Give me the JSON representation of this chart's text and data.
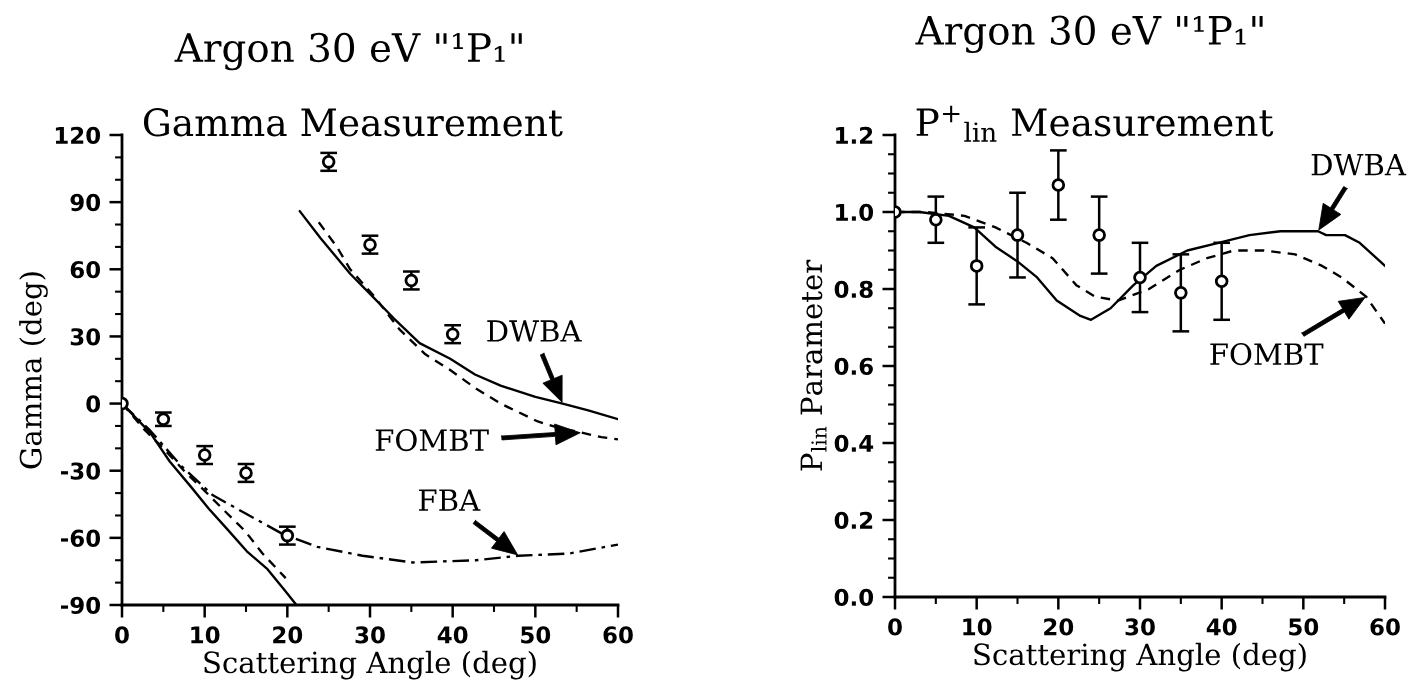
{
  "chart_data": [
    {
      "type": "line",
      "title": "Argon 30 eV \"¹P₁\"",
      "subtitle": "Gamma Measurement",
      "xlabel": "Scattering Angle (deg)",
      "ylabel": "Gamma (deg)",
      "xlim": [
        0,
        60
      ],
      "xticks": [
        0,
        {
          "value": 5,
          "label": null
        },
        10,
        {
          "value": 15,
          "label": null
        },
        20,
        {
          "value": 25,
          "label": null
        },
        30,
        {
          "value": 35,
          "label": null
        },
        40,
        {
          "value": 45,
          "label": null
        },
        50,
        {
          "value": 55,
          "label": null
        },
        60
      ],
      "ylim": [
        -90,
        120
      ],
      "yticks": [
        -90,
        {
          "value": -80,
          "label": null
        },
        {
          "value": -70,
          "label": null
        },
        -60,
        {
          "value": -50,
          "label": null
        },
        {
          "value": -40,
          "label": null
        },
        -30,
        {
          "value": -20,
          "label": null
        },
        {
          "value": -10,
          "label": null
        },
        0,
        {
          "value": 10,
          "label": null
        },
        {
          "value": 20,
          "label": null
        },
        30,
        {
          "value": 40,
          "label": null
        },
        {
          "value": 50,
          "label": null
        },
        60,
        {
          "value": 70,
          "label": null
        },
        {
          "value": 80,
          "label": null
        },
        90,
        {
          "value": 100,
          "label": null
        },
        {
          "value": 110,
          "label": null
        },
        120
      ],
      "series": [
        {
          "type": "scatter",
          "color": "#000000",
          "marker": "circle",
          "x": [
            0,
            5,
            10,
            15,
            20,
            25,
            30,
            35,
            40
          ],
          "values": [
            0,
            -7,
            -23,
            -31,
            -59,
            108,
            71,
            55,
            31
          ],
          "errors": [
            null,
            3,
            4,
            4,
            4,
            4,
            4,
            4,
            4
          ]
        },
        {
          "name": "DWBA",
          "color": "#000000",
          "line_style": "solid",
          "marker": "none",
          "x": [
            0,
            3.4,
            5.8,
            8.3,
            10.5,
            12.7,
            15.1,
            17.6,
            19.8,
            21.1,
            21.3,
            21.5,
            24,
            27.6,
            30,
            32.9,
            36,
            39.7,
            42.7,
            45.8,
            50,
            53.3,
            56.4,
            60
          ],
          "values": [
            0,
            -13,
            -26,
            -37,
            -47,
            -56,
            -66,
            -74,
            -84,
            -90,
            null,
            86,
            74,
            58,
            49,
            38,
            27,
            20,
            13,
            8,
            3,
            0,
            -3,
            -7
          ]
        },
        {
          "name": "FOMBT",
          "color": "#000000",
          "line_style": "dashed",
          "marker": "none",
          "x": [
            0,
            2.8,
            5,
            7.5,
            10,
            12.7,
            14.9,
            17,
            19.8,
            22,
            23.8,
            26,
            27.6,
            30.5,
            33.6,
            36.7,
            39.7,
            42.7,
            45.8,
            50.3,
            53,
            55.6,
            58,
            60
          ],
          "values": [
            0,
            -12,
            -20,
            -30,
            -39,
            -49,
            -57,
            -67,
            -78,
            null,
            81,
            70,
            60,
            48,
            33,
            22,
            15,
            7,
            0,
            -8,
            -11,
            -13,
            -15,
            -16
          ]
        },
        {
          "name": "FBA",
          "color": "#000000",
          "line_style": "dashdot",
          "marker": "none",
          "x": [
            0,
            3.4,
            7.2,
            11,
            14.9,
            19.3,
            23.6,
            29.1,
            35.2,
            42.8,
            48,
            54.1,
            60
          ],
          "values": [
            0,
            -12,
            -28,
            -41,
            -49,
            -58,
            -64,
            -68,
            -71,
            -70,
            -68,
            -67,
            -63
          ]
        }
      ]
    },
    {
      "type": "line",
      "title": "Argon 30 eV \"¹P₁\"",
      "subtitle": "P$^{+}$$_{lin}$ Measurement",
      "xlabel": "Scattering Angle (deg)",
      "ylabel": "P$_{lin}$ Parameter",
      "xlim": [
        0,
        60
      ],
      "xticks": [
        0,
        {
          "value": 5,
          "label": null
        },
        10,
        {
          "value": 15,
          "label": null
        },
        20,
        {
          "value": 25,
          "label": null
        },
        30,
        {
          "value": 35,
          "label": null
        },
        40,
        {
          "value": 45,
          "label": null
        },
        50,
        {
          "value": 55,
          "label": null
        },
        60
      ],
      "ylim": [
        0,
        1.2
      ],
      "yticks": [
        {
          "value": 0,
          "label": "0.0"
        },
        {
          "value": 0.05,
          "label": null
        },
        {
          "value": 0.1,
          "label": null
        },
        {
          "value": 0.15,
          "label": null
        },
        0.2,
        {
          "value": 0.25,
          "label": null
        },
        {
          "value": 0.3,
          "label": null
        },
        {
          "value": 0.35,
          "label": null
        },
        0.4,
        {
          "value": 0.45,
          "label": null
        },
        {
          "value": 0.5,
          "label": null
        },
        {
          "value": 0.55,
          "label": null
        },
        0.6,
        {
          "value": 0.65,
          "label": null
        },
        {
          "value": 0.7,
          "label": null
        },
        {
          "value": 0.75,
          "label": null
        },
        0.8,
        {
          "value": 0.85,
          "label": null
        },
        {
          "value": 0.9,
          "label": null
        },
        {
          "value": 0.95,
          "label": null
        },
        {
          "value": 1,
          "label": "1.0"
        },
        {
          "value": 1.05,
          "label": null
        },
        {
          "value": 1.1,
          "label": null
        },
        {
          "value": 1.15,
          "label": null
        },
        1.2
      ],
      "series": [
        {
          "type": "scatter",
          "color": "#000000",
          "marker": "circle",
          "x": [
            0,
            5,
            10,
            15,
            20,
            25,
            30,
            35,
            40
          ],
          "values": [
            1.0,
            0.98,
            0.86,
            0.94,
            1.07,
            0.94,
            0.83,
            0.79,
            0.82
          ],
          "errors": [
            null,
            0.06,
            0.1,
            0.11,
            0.09,
            0.1,
            0.09,
            0.1,
            0.1
          ]
        },
        {
          "name": "DWBA",
          "color": "#000000",
          "line_style": "solid",
          "marker": "none",
          "x": [
            0,
            3,
            6.6,
            9.7,
            12.3,
            15.1,
            17.4,
            19.8,
            22.7,
            24,
            26.4,
            29.2,
            32,
            35.8,
            39.6,
            43.4,
            47.2,
            51.8,
            52.8,
            55.1,
            56.9,
            60
          ],
          "values": [
            1.0,
            1.0,
            0.99,
            0.96,
            0.91,
            0.87,
            0.83,
            0.77,
            0.73,
            0.72,
            0.75,
            0.81,
            0.86,
            0.9,
            0.92,
            0.94,
            0.95,
            0.95,
            0.94,
            0.94,
            0.92,
            0.86
          ]
        },
        {
          "name": "FOMBT",
          "color": "#000000",
          "line_style": "dashed",
          "marker": "none",
          "x": [
            0,
            3.8,
            8.5,
            12.3,
            16.1,
            19.3,
            22.2,
            24.5,
            27.3,
            31.1,
            34.9,
            38.2,
            41.5,
            45.2,
            49,
            52.3,
            54.7,
            57.7,
            60
          ],
          "values": [
            1.0,
            1.0,
            0.99,
            0.96,
            0.92,
            0.88,
            0.81,
            0.78,
            0.77,
            0.8,
            0.85,
            0.88,
            0.9,
            0.9,
            0.89,
            0.86,
            0.83,
            0.78,
            0.71
          ]
        }
      ]
    }
  ]
}
